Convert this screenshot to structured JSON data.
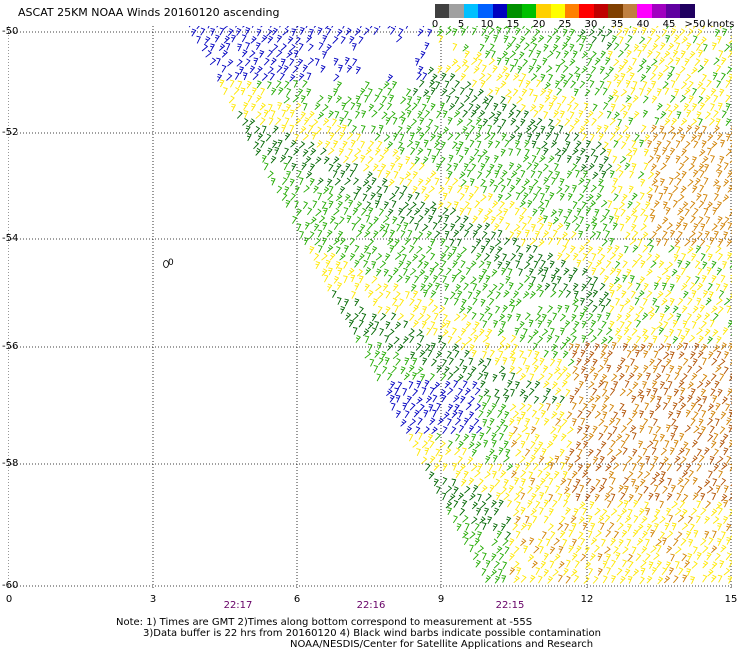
{
  "title": "ASCAT 25KM NOAA Winds 20160120 ascending",
  "scale": {
    "labels": [
      "0",
      "5",
      "10",
      "15",
      "20",
      "25",
      "30",
      "35",
      "40",
      "45",
      ">50"
    ],
    "unit": "knots",
    "colors": [
      "#404040",
      "#a0a0a0",
      "#00c0ff",
      "#0060ff",
      "#0000c0",
      "#009000",
      "#00c000",
      "#ffd000",
      "#ffff00",
      "#ff8000",
      "#ff0000",
      "#c00000",
      "#804000",
      "#c08040",
      "#ff00ff",
      "#a000c0",
      "#6000a0",
      "#200060"
    ]
  },
  "latitude_labels": [
    "-50",
    "-52",
    "-54",
    "-56",
    "-58",
    "-60"
  ],
  "longitude_labels": [
    "0",
    "3",
    "6",
    "9",
    "12",
    "15"
  ],
  "time_labels": [
    "22:17",
    "22:16",
    "22:15"
  ],
  "contour_label": "0",
  "notes": [
    "Note: 1) Times are GMT 2)Times along bottom correspond to measurement at -55S",
    "3)Data buffer is 22 hrs from 20160120 4) Black wind barbs indicate possible contamination",
    "NOAA/NESDIS/Center for Satellite Applications and Research"
  ],
  "wind_colors": {
    "blue": "#0000c0",
    "green": "#22aa00",
    "dark_green": "#006600",
    "yellow": "#ffe800",
    "orange": "#d08000",
    "brown": "#b05000"
  }
}
